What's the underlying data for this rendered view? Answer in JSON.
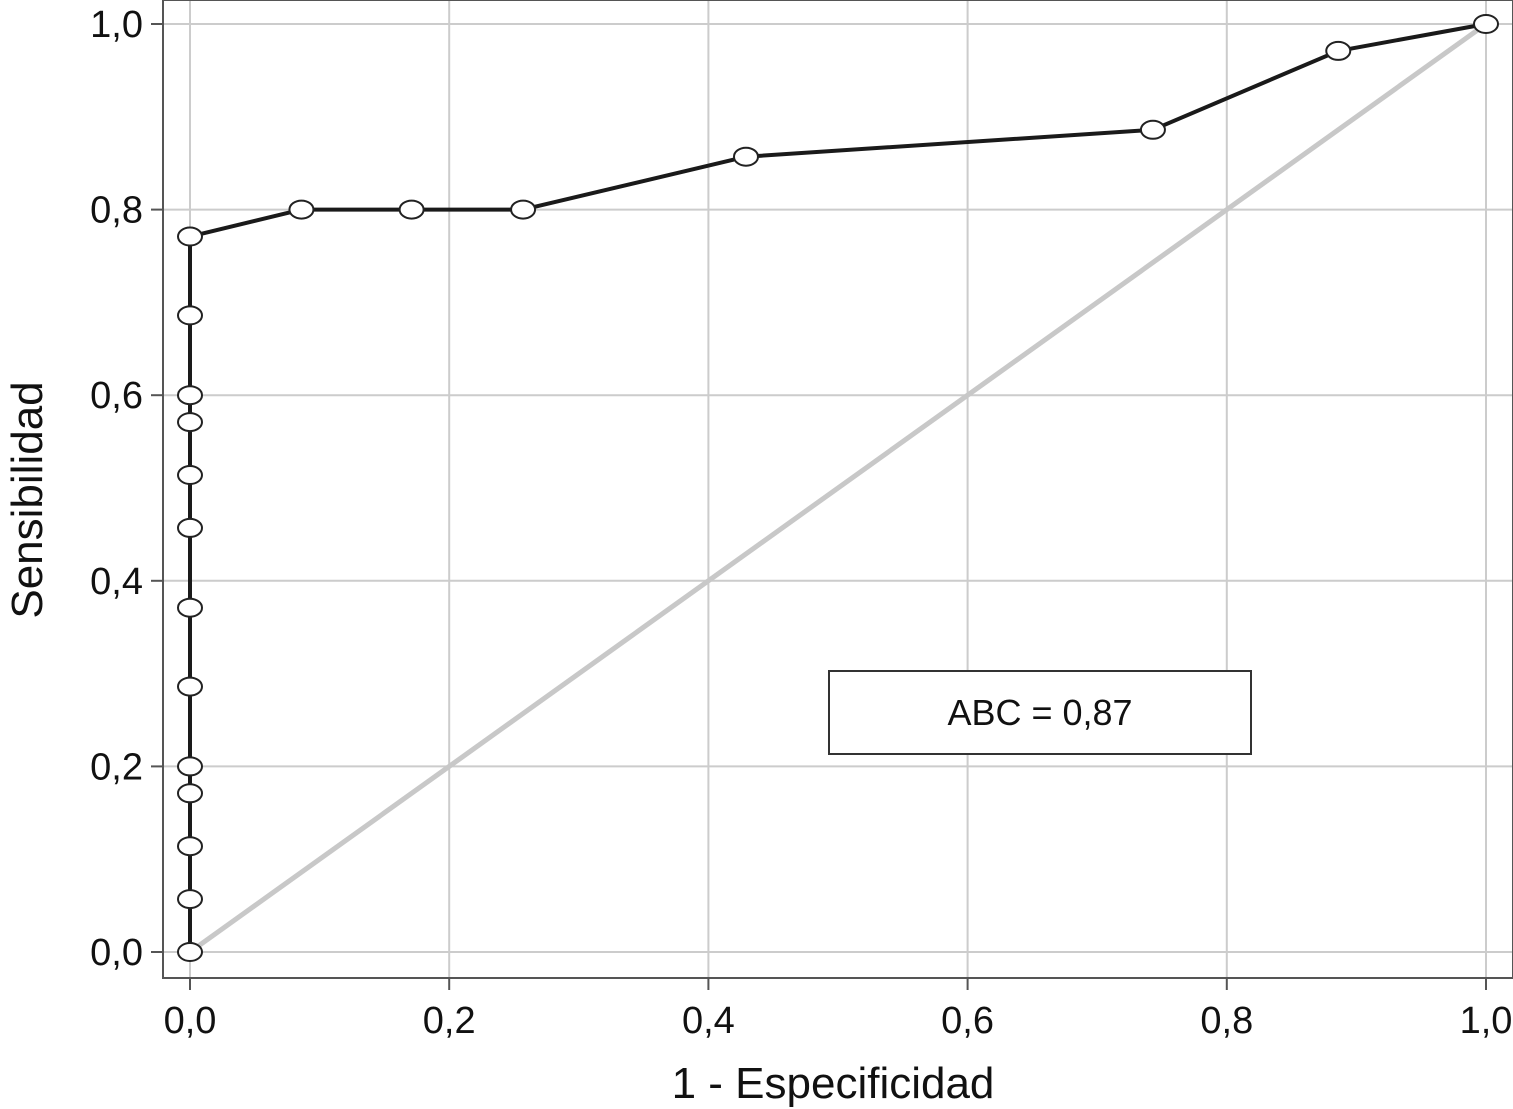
{
  "chart_data": {
    "type": "line",
    "title": "",
    "xlabel": "1 - Especificidad",
    "ylabel": "Sensibilidad",
    "xlim": [
      0,
      1
    ],
    "ylim": [
      0,
      1
    ],
    "x_ticks": [
      0,
      0.2,
      0.4,
      0.6,
      0.8,
      1.0
    ],
    "y_ticks": [
      0,
      0.2,
      0.4,
      0.6,
      0.8,
      1.0
    ],
    "x_tick_labels": [
      "0,0",
      "0,2",
      "0,4",
      "0,6",
      "0,8",
      "1,0"
    ],
    "y_tick_labels": [
      "0,0",
      "0,2",
      "0,4",
      "0,6",
      "0,8",
      "1,0"
    ],
    "grid": true,
    "annotation": "ABC = 0,87",
    "series": [
      {
        "style": "line-markers",
        "color": "#1a1a1a",
        "points": [
          [
            0,
            0
          ],
          [
            0,
            0.057
          ],
          [
            0,
            0.114
          ],
          [
            0,
            0.171
          ],
          [
            0,
            0.2
          ],
          [
            0,
            0.286
          ],
          [
            0,
            0.371
          ],
          [
            0,
            0.457
          ],
          [
            0,
            0.514
          ],
          [
            0,
            0.571
          ],
          [
            0,
            0.6
          ],
          [
            0,
            0.686
          ],
          [
            0,
            0.771
          ],
          [
            0.086,
            0.8
          ],
          [
            0.171,
            0.8
          ],
          [
            0.257,
            0.8
          ],
          [
            0.429,
            0.857
          ],
          [
            0.743,
            0.886
          ],
          [
            0.886,
            0.971
          ],
          [
            1.0,
            1.0
          ]
        ]
      },
      {
        "style": "reference",
        "color": "#c8c8c8",
        "points": [
          [
            0,
            0
          ],
          [
            1,
            1
          ]
        ]
      }
    ]
  }
}
